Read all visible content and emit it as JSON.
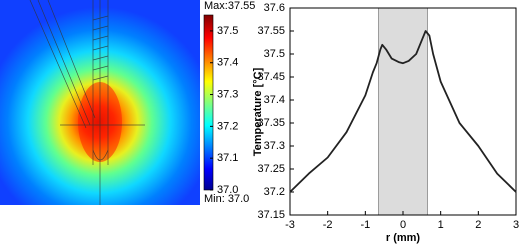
{
  "chart_data": [
    {
      "type": "heatmap",
      "max_label": "Max:37.55",
      "min_label": "Min: 37.0",
      "clim": [
        37.0,
        37.55
      ],
      "colorbar_ticks": [
        {
          "value": 37.0,
          "label": "37.0"
        },
        37.1,
        37.2,
        37.3,
        37.4,
        37.5
      ]
    },
    {
      "type": "line",
      "ylabel": "Temperature [°C]",
      "xlabel": "r (mm)",
      "x": [
        -3,
        -2.5,
        -2,
        -1.5,
        -1,
        -0.8,
        -0.7,
        -0.6,
        -0.55,
        -0.45,
        -0.3,
        -0.1,
        0,
        0.15,
        0.35,
        0.5,
        0.6,
        0.7,
        0.8,
        1,
        1.5,
        2,
        2.5,
        3
      ],
      "values": [
        37.2,
        37.24,
        37.275,
        37.33,
        37.41,
        37.46,
        37.48,
        37.51,
        37.52,
        37.51,
        37.49,
        37.482,
        37.48,
        37.485,
        37.5,
        37.53,
        37.55,
        37.54,
        37.5,
        37.44,
        37.35,
        37.3,
        37.24,
        37.2
      ],
      "color": "#222222",
      "shaded_region": [
        -0.65,
        0.65
      ],
      "xlim": [
        -3,
        3
      ],
      "xticks": [
        -3,
        -2,
        -1,
        0,
        1,
        2,
        3
      ],
      "ylim": [
        37.15,
        37.6
      ],
      "yticks": [
        37.15,
        37.2,
        37.25,
        37.3,
        37.35,
        37.4,
        37.45,
        37.5,
        37.55,
        37.6
      ]
    }
  ]
}
